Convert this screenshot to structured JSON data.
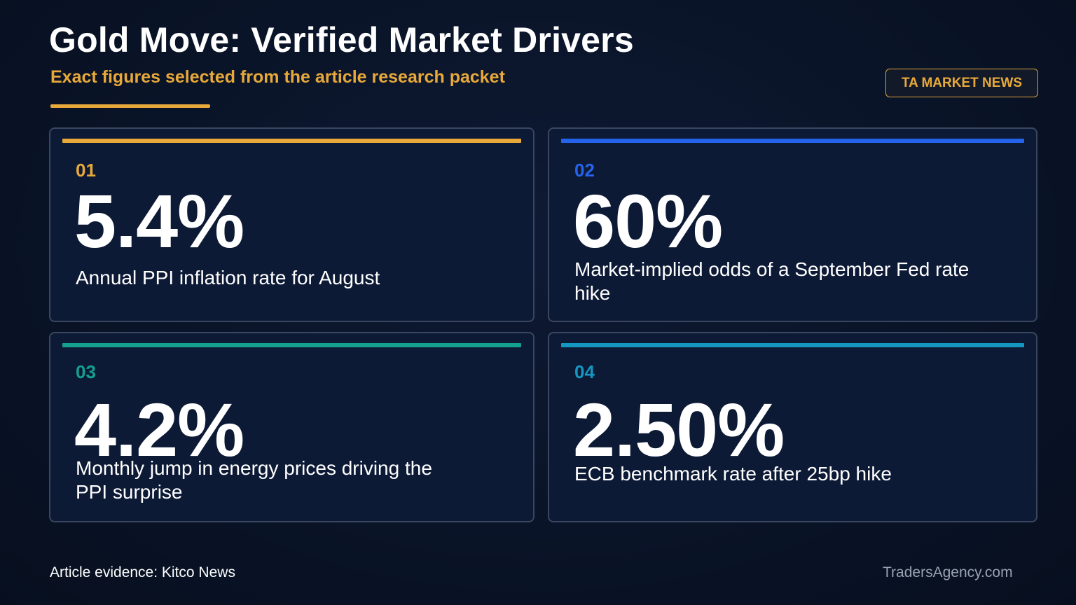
{
  "header": {
    "title": "Gold Move: Verified Market Drivers",
    "subtitle": "Exact figures selected from the article research packet",
    "badge": "TA MARKET NEWS"
  },
  "cards": [
    {
      "number": "01",
      "stat": "5.4%",
      "description": "Annual PPI inflation rate for August",
      "accent": "#e8a93a"
    },
    {
      "number": "02",
      "stat": "60%",
      "description": "Market-implied odds of a September Fed rate hike",
      "accent": "#2563eb"
    },
    {
      "number": "03",
      "stat": "4.2%",
      "description": "Monthly jump in energy prices driving the PPI surprise",
      "accent": "#14a08f"
    },
    {
      "number": "04",
      "stat": "2.50%",
      "description": "ECB benchmark rate after 25bp hike",
      "accent": "#1497c0"
    }
  ],
  "footer": {
    "source": "Article evidence: Kitco News",
    "site": "TradersAgency.com"
  }
}
